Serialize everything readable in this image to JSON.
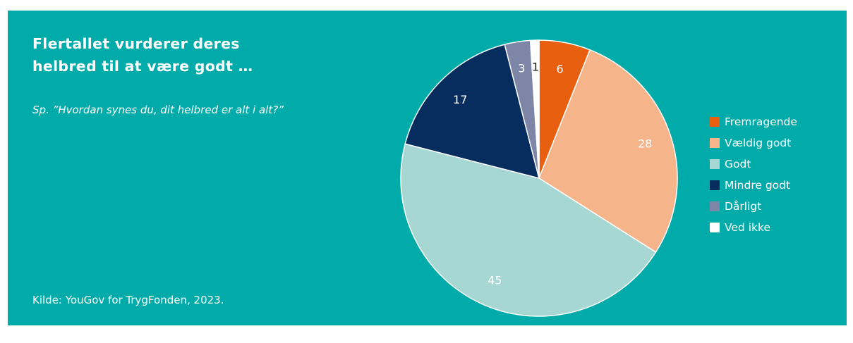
{
  "header": {
    "title": "Flertallet vurderer deres helbred til at være godt …",
    "subtitle": "Sp. ”Hvordan synes du, dit helbred er alt i alt?”"
  },
  "footer": {
    "source": "Kilde: YouGov for TrygFonden, 2023."
  },
  "colors": {
    "background": "#00aba9",
    "text": "#ffffff",
    "slice_border": "#ffffff"
  },
  "chart_data": {
    "type": "pie",
    "title": "Flertallet vurderer deres helbred til at være godt …",
    "legend_position": "right",
    "slices": [
      {
        "label": "Fremragende",
        "value": 6,
        "color": "#e8600f",
        "label_color": "#ffffff"
      },
      {
        "label": "Vældig godt",
        "value": 28,
        "color": "#f6b48a",
        "label_color": "#ffffff"
      },
      {
        "label": "Godt",
        "value": 45,
        "color": "#a6d7d3",
        "label_color": "#ffffff"
      },
      {
        "label": "Mindre godt",
        "value": 17,
        "color": "#072d5e",
        "label_color": "#ffffff"
      },
      {
        "label": "Dårligt",
        "value": 3,
        "color": "#7e86a8",
        "label_color": "#ffffff"
      },
      {
        "label": "Ved ikke",
        "value": 1,
        "color": "#ffffff",
        "label_color": "#1a1a1a"
      }
    ]
  }
}
